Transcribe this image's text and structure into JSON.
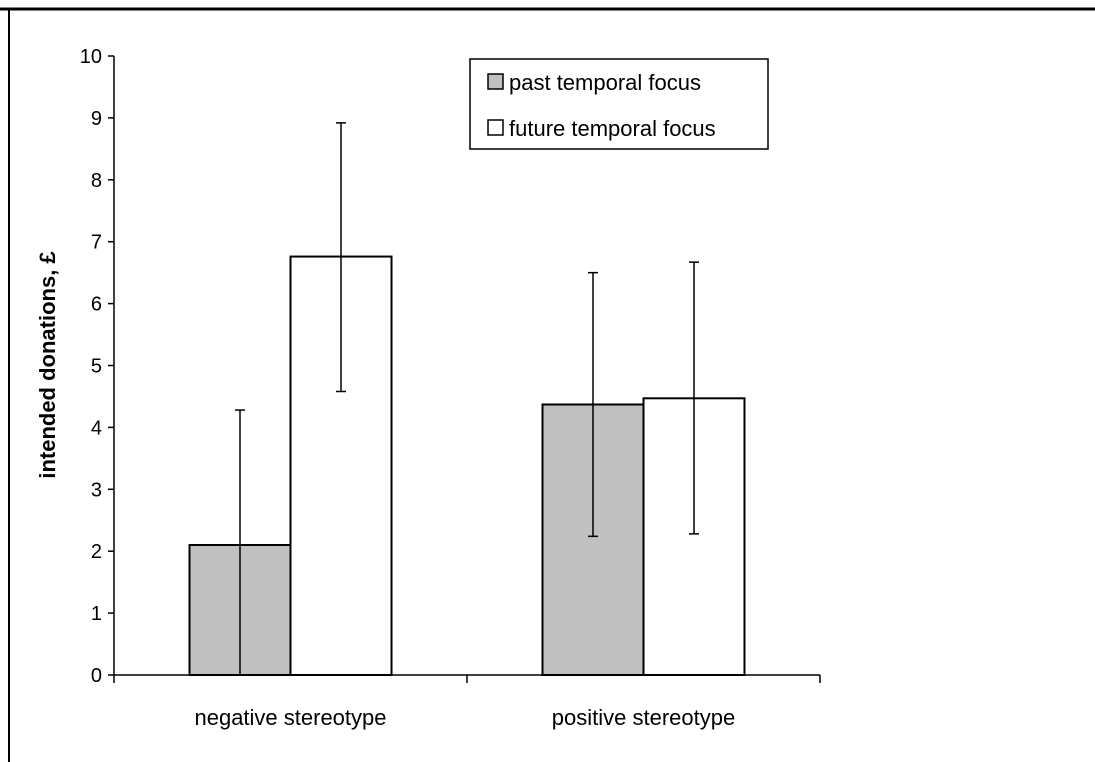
{
  "chart_data": {
    "type": "bar",
    "title": "",
    "xlabel": "",
    "ylabel": "intended donations, £",
    "ylim": [
      0,
      10
    ],
    "yticks": [
      0,
      1,
      2,
      3,
      4,
      5,
      6,
      7,
      8,
      9,
      10
    ],
    "categories": [
      "negative stereotype",
      "positive stereotype"
    ],
    "series": [
      {
        "name": "past temporal focus",
        "color": "#c0c0c0",
        "values": [
          2.1,
          4.37
        ],
        "error_low": [
          0.0,
          2.24
        ],
        "error_high": [
          4.28,
          6.5
        ]
      },
      {
        "name": "future temporal focus",
        "color": "#ffffff",
        "values": [
          6.76,
          4.47
        ],
        "error_low": [
          4.58,
          2.28
        ],
        "error_high": [
          8.92,
          6.67
        ]
      }
    ],
    "grid": false,
    "legend": "top-center"
  }
}
